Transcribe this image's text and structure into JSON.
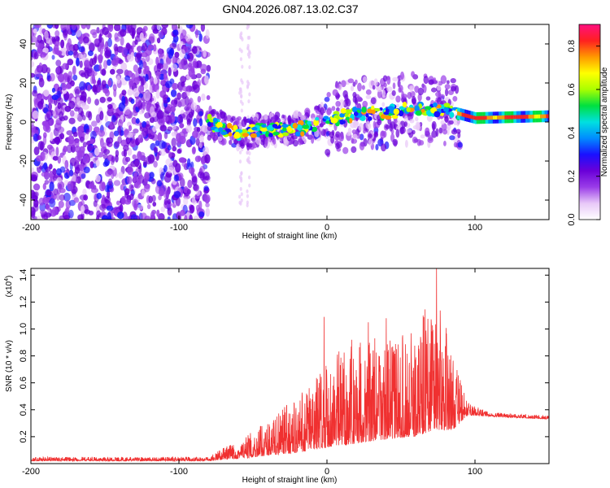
{
  "title": "GN04.2026.087.13.02.C37",
  "chart_data": [
    {
      "type": "heatmap",
      "name": "spectrogram",
      "xlabel": "Height of straight line (km)",
      "ylabel": "Frequency (Hz)",
      "xlim": [
        -200,
        150
      ],
      "ylim": [
        -50,
        50
      ],
      "xticks": [
        "-200",
        "-100",
        "0",
        "100"
      ],
      "xtick_values": [
        -200,
        -100,
        0,
        100
      ],
      "yticks": [
        "-40",
        "-20",
        "0",
        "20",
        "40"
      ],
      "ytick_values": [
        -40,
        -20,
        0,
        20,
        40
      ],
      "colorbar": {
        "label": "Normalized spectral amplitude",
        "range": [
          0,
          0.9
        ],
        "ticks": [
          "0.0",
          "0.2",
          "0.4",
          "0.6",
          "0.8"
        ],
        "tick_values": [
          0.0,
          0.2,
          0.4,
          0.6,
          0.8
        ],
        "colors": [
          "#ffffff",
          "#e8c8f8",
          "#9a3de8",
          "#6a00d8",
          "#1a10ff",
          "#008cff",
          "#00e0e0",
          "#00e040",
          "#aaff00",
          "#ffff00",
          "#ff9900",
          "#ff2020",
          "#ff1080"
        ]
      },
      "signal_track": [
        {
          "x": -80,
          "f": 0
        },
        {
          "x": -60,
          "f": -6
        },
        {
          "x": -40,
          "f": -4
        },
        {
          "x": -20,
          "f": -4
        },
        {
          "x": 0,
          "f": 1
        },
        {
          "x": 20,
          "f": 4
        },
        {
          "x": 40,
          "f": 5
        },
        {
          "x": 60,
          "f": 7
        },
        {
          "x": 80,
          "f": 6
        },
        {
          "x": 100,
          "f": 2
        },
        {
          "x": 150,
          "f": 3
        }
      ]
    },
    {
      "type": "line",
      "name": "snr",
      "xlabel": "Height of straight line (km)",
      "ylabel": "SNR (10 * v/v)",
      "multiplier": "(x10",
      "multiplier_exp": "4",
      "xlim": [
        -200,
        150
      ],
      "ylim": [
        0,
        1.45
      ],
      "xticks": [
        "-200",
        "-100",
        "0",
        "100"
      ],
      "xtick_values": [
        -200,
        -100,
        0,
        100
      ],
      "yticks": [
        "0.2",
        "0.4",
        "0.6",
        "0.8",
        "1.0",
        "1.2",
        "1.4"
      ],
      "ytick_values": [
        0.2,
        0.4,
        0.6,
        0.8,
        1.0,
        1.2,
        1.4
      ],
      "color": "#f03030",
      "envelope": [
        {
          "x": -200,
          "base": 0.02,
          "peak": 0.05
        },
        {
          "x": -80,
          "base": 0.02,
          "peak": 0.05
        },
        {
          "x": -70,
          "base": 0.03,
          "peak": 0.12
        },
        {
          "x": -55,
          "base": 0.04,
          "peak": 0.2
        },
        {
          "x": -40,
          "base": 0.06,
          "peak": 0.32
        },
        {
          "x": -20,
          "base": 0.08,
          "peak": 0.5
        },
        {
          "x": 0,
          "base": 0.12,
          "peak": 0.78
        },
        {
          "x": 20,
          "base": 0.15,
          "peak": 0.95
        },
        {
          "x": 40,
          "base": 0.18,
          "peak": 0.92
        },
        {
          "x": 60,
          "base": 0.2,
          "peak": 0.98
        },
        {
          "x": 72,
          "base": 0.25,
          "peak": 1.4
        },
        {
          "x": 85,
          "base": 0.25,
          "peak": 0.8
        },
        {
          "x": 95,
          "base": 0.36,
          "peak": 0.45
        },
        {
          "x": 110,
          "base": 0.35,
          "peak": 0.38
        },
        {
          "x": 150,
          "base": 0.33,
          "peak": 0.36
        }
      ],
      "spikes": [
        {
          "x": -2,
          "y": 1.09
        },
        {
          "x": 28,
          "y": 1.05
        },
        {
          "x": 40,
          "y": 1.08
        },
        {
          "x": 65,
          "y": 1.1
        },
        {
          "x": 74,
          "y": 1.45
        },
        {
          "x": 90,
          "y": 0.62
        },
        {
          "x": -30,
          "y": 0.4
        },
        {
          "x": -12,
          "y": 0.56
        }
      ]
    }
  ]
}
